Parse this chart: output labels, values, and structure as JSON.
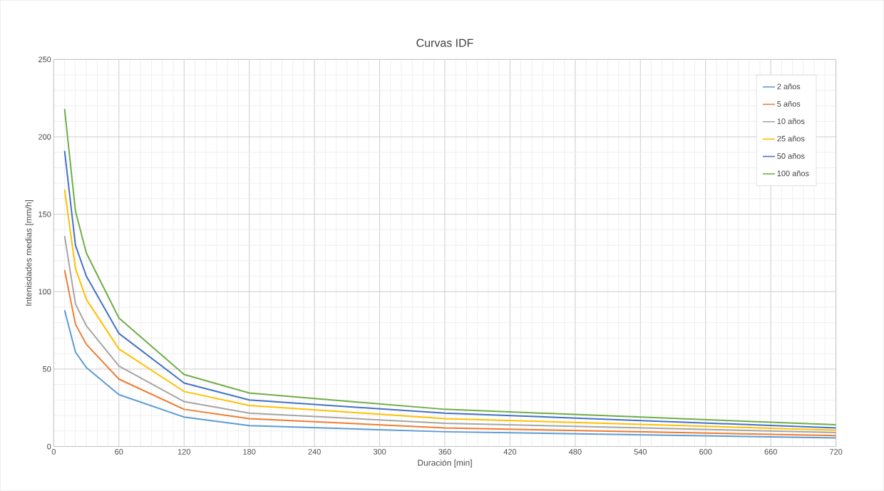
{
  "chart_data": {
    "type": "line",
    "title": "Curvas IDF",
    "xlabel": "Duración [min]",
    "ylabel": "Intenisdades medias [mm/h]",
    "x": [
      10,
      20,
      30,
      60,
      120,
      180,
      360,
      720
    ],
    "series": [
      {
        "name": "2 años",
        "color": "#5b9bd5",
        "values": [
          88,
          61,
          51,
          33.5,
          19,
          13.5,
          9.5,
          5.5
        ]
      },
      {
        "name": "5 años",
        "color": "#ed7d31",
        "values": [
          114,
          79,
          66,
          43.5,
          24,
          18,
          12,
          7
        ]
      },
      {
        "name": "10 años",
        "color": "#a5a5a5",
        "values": [
          136,
          92,
          78,
          52,
          29,
          21.5,
          15,
          9
        ]
      },
      {
        "name": "25 años",
        "color": "#ffc000",
        "values": [
          166,
          115,
          95,
          63,
          35.5,
          26.5,
          18,
          10.5
        ]
      },
      {
        "name": "50 años",
        "color": "#4472c4",
        "values": [
          191,
          130,
          110,
          73,
          41,
          30,
          21.5,
          12
        ]
      },
      {
        "name": "100 años",
        "color": "#70ad47",
        "values": [
          218,
          152,
          125,
          83,
          46.5,
          34.5,
          24,
          14
        ]
      }
    ],
    "xlim": [
      0,
      720
    ],
    "xticks": [
      0,
      60,
      120,
      180,
      240,
      300,
      360,
      420,
      480,
      540,
      600,
      660,
      720
    ],
    "ylim": [
      0,
      250
    ],
    "yticks": [
      0,
      50,
      100,
      150,
      200,
      250
    ],
    "grid": true,
    "legend": "top right",
    "marker": "none",
    "line_style": "solid"
  }
}
